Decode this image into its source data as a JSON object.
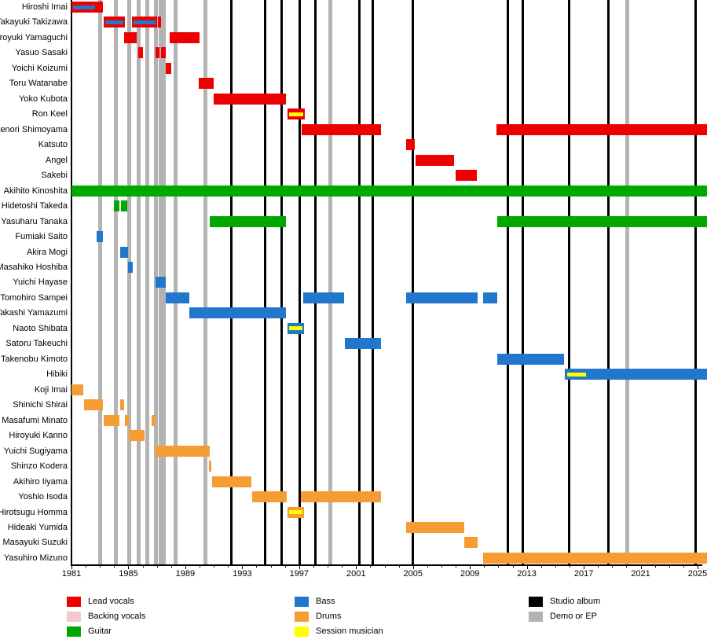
{
  "chart_data": {
    "type": "bar",
    "subtype": "band-member-gantt-timeline",
    "title": "",
    "xlabel": "",
    "ylabel": "",
    "grid": "off",
    "legend_position": "bottom",
    "axis": {
      "start": 1981,
      "end": 2025.7,
      "tick_years": [
        1981,
        1985,
        1989,
        1993,
        1997,
        2001,
        2005,
        2009,
        2013,
        2017,
        2021,
        2025
      ]
    },
    "roles": {
      "lead_vocals": "Lead vocals",
      "backing_vocals": "Backing vocals",
      "guitar": "Guitar",
      "bass": "Bass",
      "drums": "Drums",
      "session": "Session musician"
    },
    "members": [
      {
        "name": "Hiroshi Imai",
        "segments": [
          {
            "s": 1981.0,
            "e": 1983.2,
            "r": "lead_vocals",
            "st": {
              "r": "bass",
              "e": 1982.75
            }
          }
        ]
      },
      {
        "name": "Takayuki Takizawa",
        "segments": [
          {
            "s": 1983.25,
            "e": 1984.75,
            "r": "lead_vocals",
            "st": {
              "r": "bass"
            }
          },
          {
            "s": 1985.25,
            "e": 1987.0,
            "r": "lead_vocals",
            "st": {
              "r": "bass"
            }
          },
          {
            "s": 1987.1,
            "e": 1987.3,
            "r": "lead_vocals"
          }
        ]
      },
      {
        "name": "Hiroyuki Yamaguchi",
        "segments": [
          {
            "s": 1984.7,
            "e": 1985.6,
            "r": "lead_vocals"
          },
          {
            "s": 1987.9,
            "e": 1990.0,
            "r": "lead_vocals"
          }
        ]
      },
      {
        "name": "Yasuo Sasaki",
        "segments": [
          {
            "s": 1985.7,
            "e": 1986.0,
            "r": "lead_vocals"
          },
          {
            "s": 1986.9,
            "e": 1987.2,
            "r": "lead_vocals"
          },
          {
            "s": 1987.3,
            "e": 1987.65,
            "r": "lead_vocals"
          }
        ]
      },
      {
        "name": "Yoichi Koizumi",
        "segments": [
          {
            "s": 1987.6,
            "e": 1988.0,
            "r": "lead_vocals"
          }
        ]
      },
      {
        "name": "Toru Watanabe",
        "segments": [
          {
            "s": 1989.95,
            "e": 1991.0,
            "r": "lead_vocals"
          }
        ]
      },
      {
        "name": "Yoko Kubota",
        "segments": [
          {
            "s": 1991.0,
            "e": 1996.05,
            "r": "lead_vocals"
          }
        ]
      },
      {
        "name": "Ron Keel",
        "segments": [
          {
            "s": 1996.2,
            "e": 1997.4,
            "r": "lead_vocals",
            "st": {
              "r": "session"
            }
          }
        ]
      },
      {
        "name": "Takenori Shimoyama",
        "segments": [
          {
            "s": 1997.15,
            "e": 2002.75,
            "r": "lead_vocals"
          },
          {
            "s": 2010.85,
            "e": 2025.7,
            "r": "lead_vocals"
          }
        ]
      },
      {
        "name": "Katsuto",
        "segments": [
          {
            "s": 2004.5,
            "e": 2005.1,
            "r": "lead_vocals"
          }
        ]
      },
      {
        "name": "Angel",
        "segments": [
          {
            "s": 2005.2,
            "e": 2007.9,
            "r": "lead_vocals"
          }
        ]
      },
      {
        "name": "Sakebi",
        "segments": [
          {
            "s": 2008.0,
            "e": 2009.5,
            "r": "lead_vocals"
          }
        ]
      },
      {
        "name": "Akihito Kinoshita",
        "segments": [
          {
            "s": 1981.0,
            "e": 2025.7,
            "r": "guitar"
          }
        ]
      },
      {
        "name": "Hidetoshi Takeda",
        "segments": [
          {
            "s": 1984.0,
            "e": 1984.35,
            "r": "guitar"
          },
          {
            "s": 1984.5,
            "e": 1984.9,
            "r": "guitar"
          }
        ]
      },
      {
        "name": "Yasuharu Tanaka",
        "segments": [
          {
            "s": 1990.7,
            "e": 1996.05,
            "r": "guitar"
          },
          {
            "s": 2010.9,
            "e": 2025.7,
            "r": "guitar"
          }
        ]
      },
      {
        "name": "Fumiaki Saito",
        "segments": [
          {
            "s": 1982.75,
            "e": 1983.2,
            "r": "bass"
          }
        ]
      },
      {
        "name": "Akira Mogi",
        "segments": [
          {
            "s": 1984.45,
            "e": 1985.0,
            "r": "bass"
          }
        ]
      },
      {
        "name": "Masahiko Hoshiba",
        "segments": [
          {
            "s": 1985.0,
            "e": 1985.3,
            "r": "bass"
          }
        ]
      },
      {
        "name": "Yuichi Hayase",
        "segments": [
          {
            "s": 1986.9,
            "e": 1987.65,
            "r": "bass"
          }
        ]
      },
      {
        "name": "Tomohiro Sampei",
        "segments": [
          {
            "s": 1987.6,
            "e": 1989.3,
            "r": "bass"
          },
          {
            "s": 1997.3,
            "e": 2000.15,
            "r": "bass"
          },
          {
            "s": 2004.5,
            "e": 2009.55,
            "r": "bass"
          },
          {
            "s": 2009.95,
            "e": 2010.9,
            "r": "bass"
          }
        ]
      },
      {
        "name": "Takashi Yamazumi",
        "segments": [
          {
            "s": 1989.3,
            "e": 1996.05,
            "r": "bass"
          }
        ]
      },
      {
        "name": "Naoto Shibata",
        "segments": [
          {
            "s": 1996.2,
            "e": 1997.35,
            "r": "bass",
            "st": {
              "r": "session"
            }
          }
        ]
      },
      {
        "name": "Satoru Takeuchi",
        "segments": [
          {
            "s": 2000.2,
            "e": 2002.75,
            "r": "bass"
          }
        ]
      },
      {
        "name": "Takenobu Kimoto",
        "segments": [
          {
            "s": 2010.9,
            "e": 2015.6,
            "r": "bass"
          }
        ]
      },
      {
        "name": "Hibiki",
        "segments": [
          {
            "s": 2015.65,
            "e": 2025.7,
            "r": "bass",
            "st": {
              "r": "session",
              "s": 2015.7,
              "e": 2017.25
            }
          }
        ]
      },
      {
        "name": "Koji Imai",
        "segments": [
          {
            "s": 1981.0,
            "e": 1981.85,
            "r": "drums"
          }
        ]
      },
      {
        "name": "Shinichi Shirai",
        "segments": [
          {
            "s": 1981.9,
            "e": 1983.2,
            "r": "drums"
          },
          {
            "s": 1984.4,
            "e": 1984.7,
            "r": "drums"
          }
        ]
      },
      {
        "name": "Masafumi Minato",
        "segments": [
          {
            "s": 1983.25,
            "e": 1984.35,
            "r": "drums"
          },
          {
            "s": 1984.75,
            "e": 1985.05,
            "r": "drums"
          },
          {
            "s": 1986.65,
            "e": 1986.9,
            "r": "drums"
          }
        ]
      },
      {
        "name": "Hiroyuki Kanno",
        "segments": [
          {
            "s": 1985.05,
            "e": 1986.15,
            "r": "drums"
          }
        ]
      },
      {
        "name": "Yuichi Sugiyama",
        "segments": [
          {
            "s": 1986.9,
            "e": 1990.7,
            "r": "drums"
          }
        ]
      },
      {
        "name": "Shinzo Kodera",
        "segments": [
          {
            "s": 1990.65,
            "e": 1990.85,
            "r": "drums"
          }
        ]
      },
      {
        "name": "Akihiro Iiyama",
        "segments": [
          {
            "s": 1990.9,
            "e": 1993.65,
            "r": "drums"
          }
        ]
      },
      {
        "name": "Yoshio Isoda",
        "segments": [
          {
            "s": 1993.7,
            "e": 1996.1,
            "r": "drums"
          },
          {
            "s": 1997.1,
            "e": 2002.75,
            "r": "drums"
          }
        ]
      },
      {
        "name": "Hirotsugu Homma",
        "segments": [
          {
            "s": 1996.2,
            "e": 1997.35,
            "r": "drums",
            "st": {
              "r": "session"
            }
          }
        ]
      },
      {
        "name": "Hideaki Yumida",
        "segments": [
          {
            "s": 2004.5,
            "e": 2008.6,
            "r": "drums"
          }
        ]
      },
      {
        "name": "Masayuki Suzuki",
        "segments": [
          {
            "s": 2008.6,
            "e": 2009.55,
            "r": "drums"
          }
        ]
      },
      {
        "name": "Yasuhiro Mizuno",
        "segments": [
          {
            "s": 2009.95,
            "e": 2025.7,
            "r": "drums"
          }
        ]
      }
    ],
    "events": {
      "studio_albums": [
        1992.25,
        1994.6,
        1995.75,
        1997.05,
        1998.15,
        2001.25,
        2002.15,
        2005.0,
        2011.65,
        2012.7,
        2015.95,
        2018.75,
        2024.85
      ],
      "demos_eps": [
        1983.0,
        1984.1,
        1985.05,
        1985.7,
        1986.3,
        1986.95,
        1987.25,
        1987.5,
        1988.3,
        1990.4,
        1999.2,
        2020.05
      ]
    }
  },
  "colors": {
    "lead_vocals": "#ee0000",
    "backing_vocals": "#f5c8ce",
    "guitar": "#00a800",
    "bass": "#2077cc",
    "drums": "#f59d33",
    "session": "#ffff00",
    "album_line": "#000000",
    "demo_line": "#b3b3b3"
  },
  "legend": {
    "columns": [
      {
        "items": [
          {
            "label": "Lead vocals",
            "color_key": "lead_vocals"
          },
          {
            "label": "Backing vocals",
            "color_key": "backing_vocals"
          },
          {
            "label": "Guitar",
            "color_key": "guitar"
          }
        ]
      },
      {
        "items": [
          {
            "label": "Bass",
            "color_key": "bass"
          },
          {
            "label": "Drums",
            "color_key": "drums"
          },
          {
            "label": "Session musician",
            "color_key": "session"
          }
        ]
      },
      {
        "items": [
          {
            "label": "Studio album",
            "color_key": "album_line"
          },
          {
            "label": "Demo or EP",
            "color_key": "demo_line"
          }
        ]
      }
    ]
  }
}
